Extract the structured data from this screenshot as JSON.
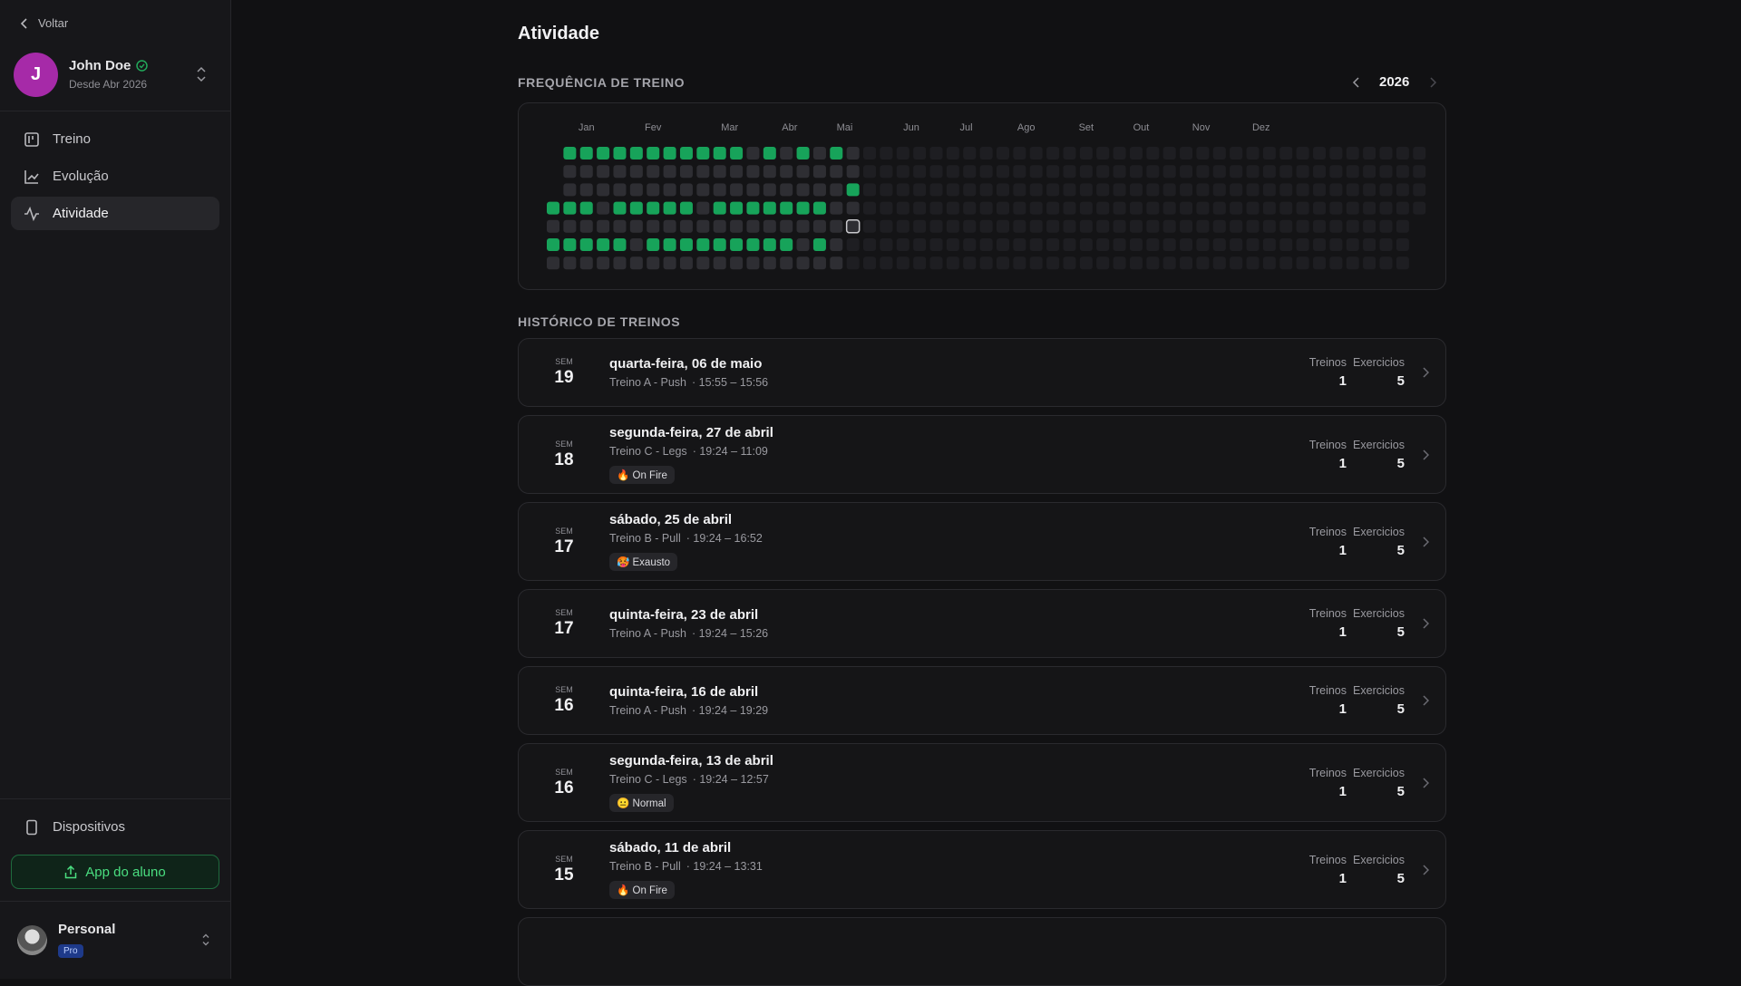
{
  "sidebar": {
    "back": "Voltar",
    "user": {
      "initial": "J",
      "name": "John Doe",
      "since": "Desde Abr 2026"
    },
    "nav": [
      "Treino",
      "Evolução",
      "Atividade"
    ],
    "devices": "Dispositivos",
    "app_button": "App do aluno",
    "account": {
      "name": "Personal",
      "plan": "Pro"
    }
  },
  "main": {
    "title": "Atividade",
    "frequency": {
      "heading": "FREQUÊNCIA DE TREINO",
      "year": 2026,
      "months": [
        "Jan",
        "Fev",
        "Mar",
        "Abr",
        "Mai",
        "Jun",
        "Jul",
        "Ago",
        "Set",
        "Out",
        "Nov",
        "Dez"
      ],
      "grid": [
        [
          null,
          2,
          2,
          2,
          2,
          2,
          2,
          2,
          2,
          2,
          2,
          2,
          1,
          2,
          1,
          2,
          1,
          2,
          1,
          0,
          0,
          0,
          0,
          0,
          0,
          0,
          0,
          0,
          0,
          0,
          0,
          0,
          0,
          0,
          0,
          0,
          0,
          0,
          0,
          0,
          0,
          0,
          0,
          0,
          0,
          0,
          0,
          0,
          0,
          0,
          0,
          0,
          0
        ],
        [
          null,
          1,
          1,
          1,
          1,
          1,
          1,
          1,
          1,
          1,
          1,
          1,
          1,
          1,
          1,
          1,
          1,
          1,
          1,
          0,
          0,
          0,
          0,
          0,
          0,
          0,
          0,
          0,
          0,
          0,
          0,
          0,
          0,
          0,
          0,
          0,
          0,
          0,
          0,
          0,
          0,
          0,
          0,
          0,
          0,
          0,
          0,
          0,
          0,
          0,
          0,
          0,
          0
        ],
        [
          null,
          1,
          1,
          1,
          1,
          1,
          1,
          1,
          1,
          1,
          1,
          1,
          1,
          1,
          1,
          1,
          1,
          1,
          2,
          0,
          0,
          0,
          0,
          0,
          0,
          0,
          0,
          0,
          0,
          0,
          0,
          0,
          0,
          0,
          0,
          0,
          0,
          0,
          0,
          0,
          0,
          0,
          0,
          0,
          0,
          0,
          0,
          0,
          0,
          0,
          0,
          0,
          0
        ],
        [
          2,
          2,
          2,
          1,
          2,
          2,
          2,
          2,
          2,
          1,
          2,
          2,
          2,
          2,
          2,
          2,
          2,
          1,
          1,
          0,
          0,
          0,
          0,
          0,
          0,
          0,
          0,
          0,
          0,
          0,
          0,
          0,
          0,
          0,
          0,
          0,
          0,
          0,
          0,
          0,
          0,
          0,
          0,
          0,
          0,
          0,
          0,
          0,
          0,
          0,
          0,
          0,
          0
        ],
        [
          1,
          1,
          1,
          1,
          1,
          1,
          1,
          1,
          1,
          1,
          1,
          1,
          1,
          1,
          1,
          1,
          1,
          1,
          3,
          0,
          0,
          0,
          0,
          0,
          0,
          0,
          0,
          0,
          0,
          0,
          0,
          0,
          0,
          0,
          0,
          0,
          0,
          0,
          0,
          0,
          0,
          0,
          0,
          0,
          0,
          0,
          0,
          0,
          0,
          0,
          0,
          0,
          null
        ],
        [
          2,
          2,
          2,
          2,
          2,
          1,
          2,
          2,
          2,
          2,
          2,
          2,
          2,
          2,
          2,
          1,
          2,
          1,
          0,
          0,
          0,
          0,
          0,
          0,
          0,
          0,
          0,
          0,
          0,
          0,
          0,
          0,
          0,
          0,
          0,
          0,
          0,
          0,
          0,
          0,
          0,
          0,
          0,
          0,
          0,
          0,
          0,
          0,
          0,
          0,
          0,
          0,
          null
        ],
        [
          1,
          1,
          1,
          1,
          1,
          1,
          1,
          1,
          1,
          1,
          1,
          1,
          1,
          1,
          1,
          1,
          1,
          1,
          0,
          0,
          0,
          0,
          0,
          0,
          0,
          0,
          0,
          0,
          0,
          0,
          0,
          0,
          0,
          0,
          0,
          0,
          0,
          0,
          0,
          0,
          0,
          0,
          0,
          0,
          0,
          0,
          0,
          0,
          0,
          0,
          0,
          0,
          null
        ]
      ]
    },
    "history": {
      "heading": "HISTÓRICO DE TREINOS",
      "entries": [
        {
          "week_label": "SEM",
          "week": 19,
          "date": "quarta-feira, 06 de maio",
          "plan": "Treino A - Push",
          "time": "· 15:55 – 15:56",
          "workouts_label": "Treinos",
          "workouts": 1,
          "exercises_label": "Exercicios",
          "exercises": 5
        },
        {
          "week_label": "SEM",
          "week": 18,
          "date": "segunda-feira, 27 de abril",
          "plan": "Treino C - Legs",
          "time": "· 19:24 – 11:09",
          "badge": "🔥 On Fire",
          "workouts_label": "Treinos",
          "workouts": 1,
          "exercises_label": "Exercicios",
          "exercises": 5
        },
        {
          "week_label": "SEM",
          "week": 17,
          "date": "sábado, 25 de abril",
          "plan": "Treino B - Pull",
          "time": "· 19:24 – 16:52",
          "badge": "🥵 Exausto",
          "workouts_label": "Treinos",
          "workouts": 1,
          "exercises_label": "Exercicios",
          "exercises": 5
        },
        {
          "week_label": "SEM",
          "week": 17,
          "date": "quinta-feira, 23 de abril",
          "plan": "Treino A - Push",
          "time": "· 19:24 – 15:26",
          "workouts_label": "Treinos",
          "workouts": 1,
          "exercises_label": "Exercicios",
          "exercises": 5
        },
        {
          "week_label": "SEM",
          "week": 16,
          "date": "quinta-feira, 16 de abril",
          "plan": "Treino A - Push",
          "time": "· 19:24 – 19:29",
          "workouts_label": "Treinos",
          "workouts": 1,
          "exercises_label": "Exercicios",
          "exercises": 5
        },
        {
          "week_label": "SEM",
          "week": 16,
          "date": "segunda-feira, 13 de abril",
          "plan": "Treino C - Legs",
          "time": "· 19:24 – 12:57",
          "badge": "😐 Normal",
          "workouts_label": "Treinos",
          "workouts": 1,
          "exercises_label": "Exercicios",
          "exercises": 5
        },
        {
          "week_label": "SEM",
          "week": 15,
          "date": "sábado, 11 de abril",
          "plan": "Treino B - Pull",
          "time": "· 19:24 – 13:31",
          "badge": "🔥 On Fire",
          "workouts_label": "Treinos",
          "workouts": 1,
          "exercises_label": "Exercicios",
          "exercises": 5
        }
      ]
    }
  }
}
